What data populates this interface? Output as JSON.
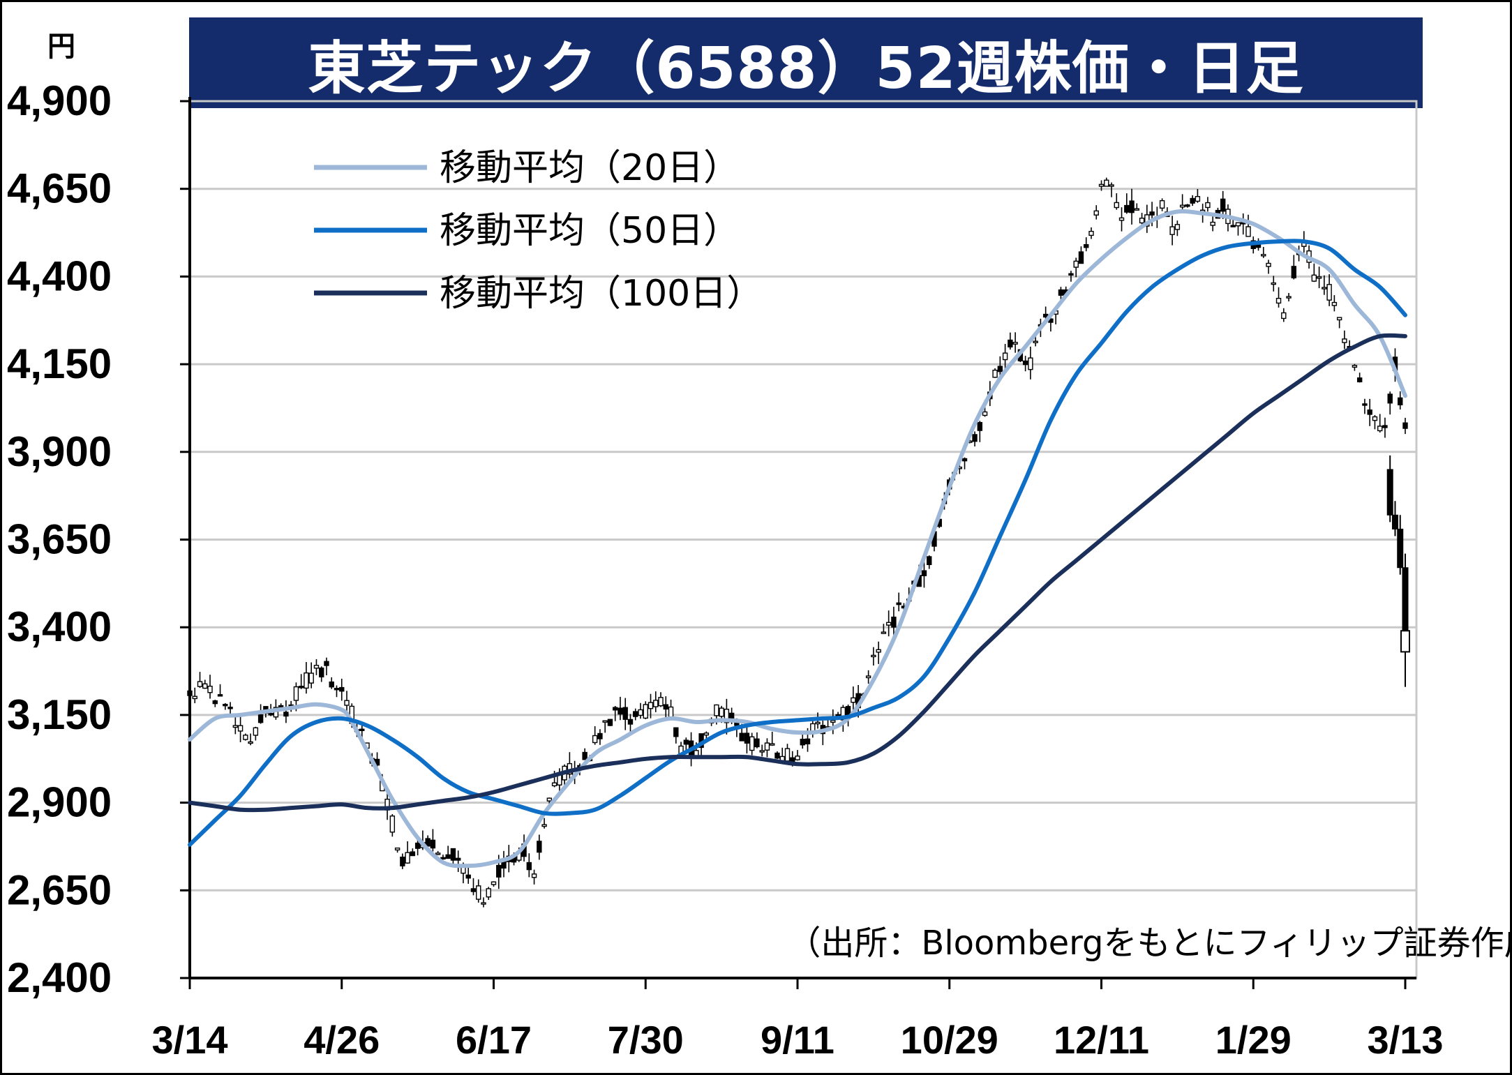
{
  "title": "東芝テック（6588）52週株価・日足",
  "y_unit": "円",
  "source": "（出所：Bloombergをもとにフィリップ証券作成）",
  "colors": {
    "title_bg": "#142c6b",
    "ma20": "#9db7d8",
    "ma50": "#0f6fc6",
    "ma100": "#1b2f5b",
    "grid": "#c9c9c9",
    "candle": "#000000"
  },
  "chart_data": {
    "type": "candlestick",
    "ylim": [
      2400,
      4900
    ],
    "yticks": [
      "4,900",
      "4,650",
      "4,400",
      "4,150",
      "3,900",
      "3,650",
      "3,400",
      "3,150",
      "2,900",
      "2,650",
      "2,400"
    ],
    "ytick_values": [
      4900,
      4650,
      4400,
      4150,
      3900,
      3650,
      3400,
      3150,
      2900,
      2650,
      2400
    ],
    "xticks": [
      "3/14",
      "4/26",
      "6/17",
      "7/30",
      "9/11",
      "10/29",
      "12/11",
      "1/29",
      "3/13"
    ],
    "xtick_index": [
      0,
      30,
      60,
      90,
      120,
      150,
      180,
      210,
      240
    ],
    "n_days": 241,
    "grid": true,
    "legend": "top-left",
    "series": [
      {
        "name": "移動平均（20日）",
        "key": "ma20",
        "points": [
          [
            0,
            3080
          ],
          [
            5,
            3140
          ],
          [
            10,
            3150
          ],
          [
            15,
            3160
          ],
          [
            20,
            3170
          ],
          [
            25,
            3180
          ],
          [
            30,
            3165
          ],
          [
            32,
            3130
          ],
          [
            36,
            3020
          ],
          [
            40,
            2910
          ],
          [
            45,
            2800
          ],
          [
            50,
            2730
          ],
          [
            55,
            2720
          ],
          [
            60,
            2730
          ],
          [
            65,
            2760
          ],
          [
            70,
            2870
          ],
          [
            75,
            2960
          ],
          [
            80,
            3040
          ],
          [
            85,
            3080
          ],
          [
            90,
            3120
          ],
          [
            95,
            3140
          ],
          [
            100,
            3130
          ],
          [
            105,
            3135
          ],
          [
            110,
            3130
          ],
          [
            115,
            3110
          ],
          [
            120,
            3100
          ],
          [
            125,
            3105
          ],
          [
            130,
            3140
          ],
          [
            135,
            3250
          ],
          [
            140,
            3400
          ],
          [
            145,
            3600
          ],
          [
            150,
            3800
          ],
          [
            155,
            3980
          ],
          [
            160,
            4110
          ],
          [
            165,
            4200
          ],
          [
            170,
            4290
          ],
          [
            175,
            4380
          ],
          [
            180,
            4450
          ],
          [
            185,
            4510
          ],
          [
            190,
            4560
          ],
          [
            195,
            4585
          ],
          [
            200,
            4580
          ],
          [
            205,
            4570
          ],
          [
            210,
            4550
          ],
          [
            215,
            4510
          ],
          [
            220,
            4460
          ],
          [
            225,
            4420
          ],
          [
            230,
            4320
          ],
          [
            235,
            4230
          ],
          [
            240,
            4060
          ]
        ]
      },
      {
        "name": "移動平均（50日）",
        "key": "ma50",
        "points": [
          [
            0,
            2780
          ],
          [
            5,
            2850
          ],
          [
            10,
            2920
          ],
          [
            15,
            3010
          ],
          [
            20,
            3090
          ],
          [
            25,
            3130
          ],
          [
            30,
            3140
          ],
          [
            35,
            3120
          ],
          [
            40,
            3080
          ],
          [
            45,
            3030
          ],
          [
            50,
            2970
          ],
          [
            55,
            2930
          ],
          [
            60,
            2910
          ],
          [
            65,
            2890
          ],
          [
            70,
            2870
          ],
          [
            75,
            2870
          ],
          [
            80,
            2880
          ],
          [
            85,
            2920
          ],
          [
            90,
            2970
          ],
          [
            95,
            3020
          ],
          [
            100,
            3060
          ],
          [
            105,
            3100
          ],
          [
            110,
            3120
          ],
          [
            115,
            3130
          ],
          [
            120,
            3135
          ],
          [
            125,
            3140
          ],
          [
            130,
            3145
          ],
          [
            135,
            3170
          ],
          [
            140,
            3200
          ],
          [
            145,
            3260
          ],
          [
            150,
            3370
          ],
          [
            155,
            3500
          ],
          [
            160,
            3660
          ],
          [
            165,
            3820
          ],
          [
            170,
            3990
          ],
          [
            175,
            4120
          ],
          [
            180,
            4210
          ],
          [
            185,
            4300
          ],
          [
            190,
            4370
          ],
          [
            195,
            4420
          ],
          [
            200,
            4460
          ],
          [
            205,
            4485
          ],
          [
            210,
            4495
          ],
          [
            215,
            4500
          ],
          [
            220,
            4500
          ],
          [
            225,
            4480
          ],
          [
            230,
            4420
          ],
          [
            235,
            4370
          ],
          [
            240,
            4290
          ]
        ]
      },
      {
        "name": "移動平均（100日）",
        "key": "ma100",
        "points": [
          [
            0,
            2900
          ],
          [
            5,
            2890
          ],
          [
            10,
            2880
          ],
          [
            15,
            2880
          ],
          [
            20,
            2885
          ],
          [
            25,
            2890
          ],
          [
            30,
            2895
          ],
          [
            35,
            2885
          ],
          [
            40,
            2885
          ],
          [
            45,
            2895
          ],
          [
            50,
            2905
          ],
          [
            55,
            2915
          ],
          [
            60,
            2930
          ],
          [
            65,
            2950
          ],
          [
            70,
            2970
          ],
          [
            75,
            2990
          ],
          [
            80,
            3005
          ],
          [
            85,
            3015
          ],
          [
            90,
            3025
          ],
          [
            95,
            3030
          ],
          [
            100,
            3030
          ],
          [
            105,
            3030
          ],
          [
            110,
            3030
          ],
          [
            115,
            3020
          ],
          [
            120,
            3010
          ],
          [
            125,
            3010
          ],
          [
            130,
            3015
          ],
          [
            135,
            3040
          ],
          [
            140,
            3090
          ],
          [
            145,
            3160
          ],
          [
            150,
            3240
          ],
          [
            155,
            3320
          ],
          [
            160,
            3390
          ],
          [
            165,
            3460
          ],
          [
            170,
            3530
          ],
          [
            175,
            3590
          ],
          [
            180,
            3650
          ],
          [
            185,
            3710
          ],
          [
            190,
            3770
          ],
          [
            195,
            3830
          ],
          [
            200,
            3890
          ],
          [
            205,
            3950
          ],
          [
            210,
            4010
          ],
          [
            215,
            4060
          ],
          [
            220,
            4110
          ],
          [
            225,
            4160
          ],
          [
            230,
            4200
          ],
          [
            235,
            4230
          ],
          [
            240,
            4230
          ]
        ]
      }
    ],
    "candle_path": [
      [
        0,
        3200
      ],
      [
        3,
        3235
      ],
      [
        6,
        3190
      ],
      [
        9,
        3135
      ],
      [
        12,
        3090
      ],
      [
        15,
        3150
      ],
      [
        18,
        3160
      ],
      [
        20,
        3180
      ],
      [
        22,
        3240
      ],
      [
        24,
        3260
      ],
      [
        27,
        3280
      ],
      [
        29,
        3230
      ],
      [
        31,
        3180
      ],
      [
        33,
        3120
      ],
      [
        35,
        3070
      ],
      [
        37,
        3000
      ],
      [
        39,
        2900
      ],
      [
        40,
        2840
      ],
      [
        42,
        2730
      ],
      [
        45,
        2760
      ],
      [
        47,
        2790
      ],
      [
        50,
        2760
      ],
      [
        52,
        2750
      ],
      [
        54,
        2720
      ],
      [
        56,
        2660
      ],
      [
        58,
        2620
      ],
      [
        60,
        2680
      ],
      [
        63,
        2740
      ],
      [
        66,
        2760
      ],
      [
        68,
        2700
      ],
      [
        70,
        2850
      ],
      [
        72,
        2960
      ],
      [
        75,
        2990
      ],
      [
        78,
        3020
      ],
      [
        80,
        3070
      ],
      [
        82,
        3120
      ],
      [
        85,
        3160
      ],
      [
        87,
        3140
      ],
      [
        90,
        3160
      ],
      [
        93,
        3200
      ],
      [
        95,
        3160
      ],
      [
        97,
        3060
      ],
      [
        100,
        3050
      ],
      [
        102,
        3100
      ],
      [
        104,
        3160
      ],
      [
        107,
        3140
      ],
      [
        110,
        3080
      ],
      [
        113,
        3050
      ],
      [
        115,
        3050
      ],
      [
        117,
        3030
      ],
      [
        120,
        3030
      ],
      [
        122,
        3090
      ],
      [
        124,
        3120
      ],
      [
        126,
        3110
      ],
      [
        128,
        3140
      ],
      [
        130,
        3160
      ],
      [
        132,
        3190
      ],
      [
        134,
        3250
      ],
      [
        136,
        3350
      ],
      [
        138,
        3400
      ],
      [
        140,
        3450
      ],
      [
        142,
        3490
      ],
      [
        144,
        3540
      ],
      [
        146,
        3600
      ],
      [
        148,
        3700
      ],
      [
        150,
        3800
      ],
      [
        152,
        3870
      ],
      [
        154,
        3920
      ],
      [
        156,
        3970
      ],
      [
        158,
        4070
      ],
      [
        160,
        4150
      ],
      [
        162,
        4200
      ],
      [
        164,
        4180
      ],
      [
        166,
        4150
      ],
      [
        168,
        4250
      ],
      [
        170,
        4290
      ],
      [
        172,
        4340
      ],
      [
        174,
        4390
      ],
      [
        176,
        4450
      ],
      [
        178,
        4520
      ],
      [
        180,
        4680
      ],
      [
        182,
        4640
      ],
      [
        184,
        4560
      ],
      [
        186,
        4600
      ],
      [
        188,
        4560
      ],
      [
        190,
        4570
      ],
      [
        192,
        4600
      ],
      [
        194,
        4520
      ],
      [
        196,
        4590
      ],
      [
        198,
        4620
      ],
      [
        200,
        4610
      ],
      [
        202,
        4570
      ],
      [
        204,
        4600
      ],
      [
        206,
        4550
      ],
      [
        208,
        4550
      ],
      [
        210,
        4500
      ],
      [
        212,
        4450
      ],
      [
        214,
        4380
      ],
      [
        216,
        4300
      ],
      [
        218,
        4420
      ],
      [
        220,
        4510
      ],
      [
        222,
        4400
      ],
      [
        224,
        4380
      ],
      [
        226,
        4330
      ],
      [
        228,
        4230
      ],
      [
        230,
        4130
      ],
      [
        232,
        4050
      ],
      [
        234,
        4000
      ],
      [
        236,
        3960
      ],
      [
        237,
        4050
      ],
      [
        238,
        4150
      ],
      [
        239,
        4050
      ],
      [
        240,
        3980
      ]
    ],
    "sell_off": [
      [
        237,
        3850
      ],
      [
        238,
        3720
      ],
      [
        239,
        3680
      ],
      [
        240,
        3570
      ],
      [
        241,
        3390
      ]
    ]
  }
}
